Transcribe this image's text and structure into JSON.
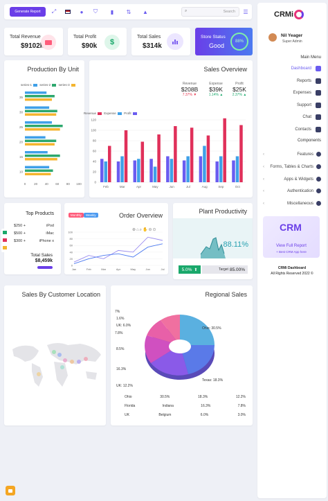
{
  "header": {
    "generate_report_label": "Generate Report",
    "search_placeholder": "Search"
  },
  "sidebar": {
    "logo_text": "CRMi",
    "user_name": "Nil Yeager",
    "user_role": "Super Admin",
    "main_menu_label": "Main Menu",
    "main_items": [
      {
        "label": "Dashboard",
        "active": true
      },
      {
        "label": "Reports"
      },
      {
        "label": "Expenses"
      },
      {
        "label": "Support"
      },
      {
        "label": "Chat"
      },
      {
        "label": "Contacts"
      }
    ],
    "components_label": "Components",
    "component_items": [
      {
        "label": "Features"
      },
      {
        "label": "Forms, Tables & Charts"
      },
      {
        "label": "Apps & Widgets"
      },
      {
        "label": "Authentication"
      },
      {
        "label": "Miscellaneous"
      }
    ],
    "promo_logo": "CRM",
    "promo_link": "View Full Report",
    "promo_sub": "+ Best CRM App here",
    "footer_title": "CRMi Dashboard",
    "footer_copy": "All Rights Reserved 2022 ©"
  },
  "stats": [
    {
      "label": "Total Revenue",
      "value": "$9102k",
      "icon": "wallet-icon",
      "color": "#ff5b7a",
      "bg": "#ffe3e9"
    },
    {
      "label": "Total Profit",
      "value": "$90k",
      "icon": "dollar-icon",
      "color": "#1aa86b",
      "bg": "#def6ea"
    },
    {
      "label": "Total Sales",
      "value": "$314k",
      "icon": "bar-chart-icon",
      "color": "#7a5cf0",
      "bg": "#ece6ff"
    }
  ],
  "store_status": {
    "label": "Store Status",
    "value": "Good",
    "percent": 88,
    "percent_label": "88%"
  },
  "production": {
    "title": "Production By Unit",
    "legend": [
      "series-1",
      "series-2",
      "series-3"
    ],
    "y_ticks": [
      "35",
      "30",
      "25",
      "20",
      "15",
      "10"
    ],
    "x_ticks": [
      "0",
      "20",
      "40",
      "60",
      "80",
      "100"
    ]
  },
  "sales_overview": {
    "title": "Sales Overview",
    "kpis": [
      {
        "label": "Revenue",
        "value": "$208B",
        "change": "7.37%",
        "trend": "down"
      },
      {
        "label": "Expense",
        "value": "$39K",
        "change": "1.14%",
        "trend": "up"
      },
      {
        "label": "Profit",
        "value": "$25K",
        "change": "2.37%",
        "trend": "up"
      }
    ],
    "legend": [
      "Revenue",
      "Expense",
      "Profit"
    ],
    "y_ticks": [
      "120",
      "100",
      "80",
      "60",
      "40",
      "20",
      "0"
    ],
    "months": [
      "Feb",
      "Mar",
      "Apr",
      "May",
      "Jun",
      "Jul",
      "Aug",
      "Sep",
      "Oct"
    ]
  },
  "top_products": {
    "title": "Top Products",
    "items": [
      {
        "price": "$250 +",
        "name": "iPod"
      },
      {
        "price": "$500 +",
        "name": "iMac"
      },
      {
        "price": "$300 +",
        "name": "iPhone x"
      }
    ],
    "total_label": "Total Sales",
    "total_value": "$8,459k"
  },
  "order_overview": {
    "title": "Order Overview",
    "tabs": [
      "Monthly",
      "Weekly"
    ],
    "y_ticks": [
      "100",
      "80",
      "60",
      "40",
      "20",
      "0"
    ],
    "months": [
      "Jan",
      "Feb",
      "Mar",
      "Apr",
      "May",
      "Jun",
      "Jul"
    ]
  },
  "plant": {
    "title": "Plant Productivity",
    "value": "88.11%",
    "badge": "5.0%",
    "target_label": "Target",
    "target_value": "85.00%"
  },
  "location": {
    "title": "Sales By Customer Location"
  },
  "regional": {
    "title": "Regional Sales",
    "left_labels": [
      "7%",
      "1.6%",
      "UK: 6.0%",
      "7.8%",
      "8.5%",
      "16.3%",
      "UK: 12.2%"
    ],
    "right_labels": [
      "Ohio: 30.5%",
      "Texas: 18.3%"
    ],
    "legend_rows": [
      [
        "Ohio",
        "30.5%",
        "18.3%",
        "12.2%"
      ],
      [
        "Florida",
        "Indiana",
        "16.3%",
        "7.8%"
      ],
      [
        "UK",
        "Belgium",
        "6.0%",
        "3.0%"
      ]
    ]
  },
  "chart_data": [
    {
      "type": "bar",
      "orientation": "horizontal",
      "title": "Production By Unit",
      "categories": [
        "35",
        "30",
        "25",
        "20",
        "15",
        "10"
      ],
      "series": [
        {
          "name": "series-1",
          "values": [
            40,
            45,
            50,
            38,
            42,
            45
          ]
        },
        {
          "name": "series-2",
          "values": [
            55,
            60,
            70,
            58,
            65,
            52
          ]
        },
        {
          "name": "series-3",
          "values": [
            50,
            58,
            65,
            55,
            60,
            48
          ]
        }
      ],
      "xlim": [
        0,
        100
      ]
    },
    {
      "type": "bar",
      "title": "Sales Overview",
      "categories": [
        "Feb",
        "Mar",
        "Apr",
        "May",
        "Jun",
        "Jul",
        "Aug",
        "Sep",
        "Oct"
      ],
      "series": [
        {
          "name": "Revenue",
          "values": [
            70,
            100,
            78,
            92,
            108,
            105,
            90,
            123,
            110
          ]
        },
        {
          "name": "Expense",
          "values": [
            40,
            50,
            45,
            30,
            45,
            50,
            70,
            50,
            50
          ]
        },
        {
          "name": "Profit",
          "values": [
            45,
            40,
            42,
            45,
            50,
            42,
            50,
            40,
            42
          ]
        }
      ],
      "ylim": [
        0,
        120
      ]
    },
    {
      "type": "line",
      "title": "Order Overview",
      "x": [
        "Jan",
        "Feb",
        "Mar",
        "Apr",
        "May",
        "Jun",
        "Jul"
      ],
      "series": [
        {
          "values": [
            10,
            30,
            20,
            45,
            40,
            85,
            75
          ]
        },
        {
          "values": [
            5,
            20,
            30,
            35,
            25,
            55,
            65
          ]
        }
      ],
      "ylim": [
        0,
        100
      ]
    }
  ]
}
